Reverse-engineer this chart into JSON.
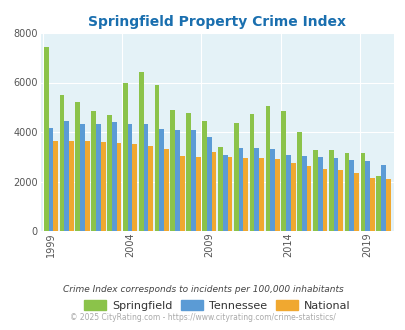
{
  "title": "Springfield Property Crime Index",
  "years": [
    1999,
    2000,
    2001,
    2002,
    2003,
    2004,
    2005,
    2006,
    2007,
    2008,
    2009,
    2010,
    2011,
    2012,
    2013,
    2014,
    2015,
    2016,
    2017,
    2018,
    2019,
    2020
  ],
  "springfield": [
    7450,
    5500,
    5200,
    4850,
    4700,
    5980,
    6420,
    5900,
    4900,
    4780,
    4440,
    3400,
    4380,
    4720,
    5050,
    4850,
    4020,
    3260,
    3270,
    3140,
    3140,
    2230
  ],
  "tennessee": [
    4180,
    4450,
    4330,
    4330,
    4400,
    4340,
    4340,
    4120,
    4080,
    4100,
    3780,
    3070,
    3340,
    3360,
    3310,
    3080,
    3050,
    2970,
    2950,
    2870,
    2840,
    2680
  ],
  "national": [
    3650,
    3650,
    3620,
    3580,
    3550,
    3510,
    3440,
    3330,
    3050,
    2970,
    3200,
    2990,
    2950,
    2940,
    2910,
    2740,
    2620,
    2500,
    2450,
    2360,
    2130,
    2100
  ],
  "bar_colors": {
    "springfield": "#8bc34a",
    "tennessee": "#5b9bd5",
    "national": "#f0a830"
  },
  "ylim": [
    0,
    8000
  ],
  "yticks": [
    0,
    2000,
    4000,
    6000,
    8000
  ],
  "xlabel_ticks": [
    1999,
    2004,
    2009,
    2014,
    2019
  ],
  "background_color": "#e4f2f7",
  "title_color": "#1a6faf",
  "title_fontsize": 10,
  "legend_labels": [
    "Springfield",
    "Tennessee",
    "National"
  ],
  "footnote1": "Crime Index corresponds to incidents per 100,000 inhabitants",
  "footnote2": "© 2025 CityRating.com - https://www.cityrating.com/crime-statistics/",
  "footnote_color": "#444444",
  "footnote2_color": "#aaaaaa"
}
